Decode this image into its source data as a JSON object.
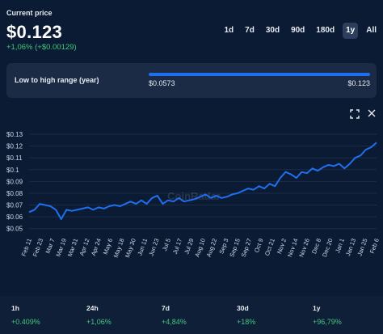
{
  "header": {
    "current_label": "Current price",
    "price": "$0.123",
    "change": "+1,06% (+$0.00129)"
  },
  "range_tabs": [
    "1d",
    "7d",
    "30d",
    "90d",
    "180d",
    "1y",
    "All"
  ],
  "active_tab": "1y",
  "range": {
    "label": "Low to high range (year)",
    "low": "$0.0573",
    "high": "$0.123"
  },
  "icons": {
    "expand": "expand-icon",
    "close": "close-icon"
  },
  "colors": {
    "line": "#1f6ff0",
    "positive": "#3ec97a",
    "background": "#0b1b33"
  },
  "chart_data": {
    "type": "line",
    "title": "",
    "xlabel": "",
    "ylabel": "",
    "ylim": [
      0.045,
      0.13
    ],
    "y_ticks": [
      "$0.13",
      "$0.12",
      "$0.11",
      "$0.1",
      "$0.09",
      "$0.08",
      "$0.07",
      "$0.06",
      "$0.05"
    ],
    "y_tick_values": [
      0.13,
      0.12,
      0.11,
      0.1,
      0.09,
      0.08,
      0.07,
      0.06,
      0.05
    ],
    "x_ticks": [
      "Feb 11",
      "Feb 23",
      "Mar 7",
      "Mar 19",
      "Mar 31",
      "Apr 12",
      "Apr 24",
      "May 6",
      "May 18",
      "May 30",
      "Jun 11",
      "Jun 23",
      "Jul 5",
      "Jul 17",
      "Jul 29",
      "Aug 10",
      "Aug 22",
      "Sep 3",
      "Sep 15",
      "Sep 27",
      "Oct 9",
      "Oct 21",
      "Nov 2",
      "Nov 14",
      "Nov 26",
      "Dec 8",
      "Dec 20",
      "Jan 1",
      "Jan 13",
      "Jan 25",
      "Feb 6"
    ],
    "grid": true,
    "series": [
      {
        "values": [
          0.064,
          0.066,
          0.071,
          0.07,
          0.069,
          0.066,
          0.058,
          0.066,
          0.065,
          0.066,
          0.067,
          0.068,
          0.066,
          0.068,
          0.067,
          0.069,
          0.07,
          0.069,
          0.071,
          0.073,
          0.071,
          0.074,
          0.071,
          0.076,
          0.078,
          0.071,
          0.074,
          0.073,
          0.076,
          0.073,
          0.074,
          0.075,
          0.077,
          0.079,
          0.076,
          0.078,
          0.076,
          0.077,
          0.079,
          0.08,
          0.082,
          0.084,
          0.083,
          0.086,
          0.084,
          0.088,
          0.086,
          0.093,
          0.098,
          0.096,
          0.093,
          0.098,
          0.097,
          0.101,
          0.099,
          0.102,
          0.104,
          0.103,
          0.105,
          0.101,
          0.105,
          0.11,
          0.112,
          0.117,
          0.119,
          0.123
        ]
      }
    ]
  },
  "watermark": "CoinRadar",
  "stats": [
    {
      "period": "1h",
      "value": "+0.409%"
    },
    {
      "period": "24h",
      "value": "+1,06%"
    },
    {
      "period": "7d",
      "value": "+4,84%"
    },
    {
      "period": "30d",
      "value": "+18%"
    },
    {
      "period": "1y",
      "value": "+96,79%"
    }
  ]
}
